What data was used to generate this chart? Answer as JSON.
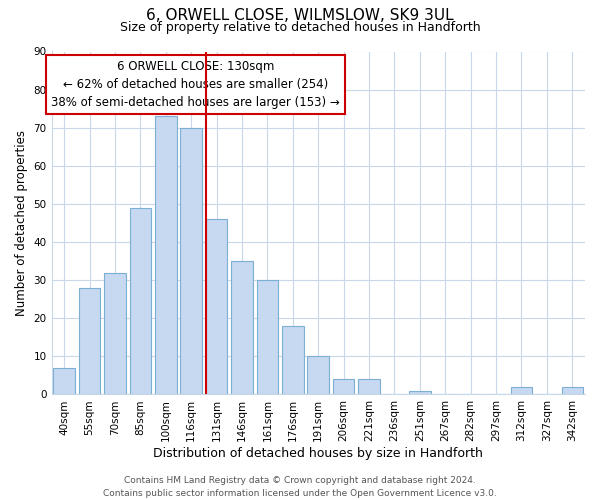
{
  "title": "6, ORWELL CLOSE, WILMSLOW, SK9 3UL",
  "subtitle": "Size of property relative to detached houses in Handforth",
  "xlabel": "Distribution of detached houses by size in Handforth",
  "ylabel": "Number of detached properties",
  "bar_labels": [
    "40sqm",
    "55sqm",
    "70sqm",
    "85sqm",
    "100sqm",
    "116sqm",
    "131sqm",
    "146sqm",
    "161sqm",
    "176sqm",
    "191sqm",
    "206sqm",
    "221sqm",
    "236sqm",
    "251sqm",
    "267sqm",
    "282sqm",
    "297sqm",
    "312sqm",
    "327sqm",
    "342sqm"
  ],
  "bar_values": [
    7,
    28,
    32,
    49,
    73,
    70,
    46,
    35,
    30,
    18,
    10,
    4,
    4,
    0,
    1,
    0,
    0,
    0,
    2,
    0,
    2
  ],
  "bar_color": "#c6d9f0",
  "bar_edge_color": "#7bafd4",
  "vline_index": 6,
  "vline_color": "#cc0000",
  "ylim": [
    0,
    90
  ],
  "yticks": [
    0,
    10,
    20,
    30,
    40,
    50,
    60,
    70,
    80,
    90
  ],
  "annotation_title": "6 ORWELL CLOSE: 130sqm",
  "annotation_line1": "← 62% of detached houses are smaller (254)",
  "annotation_line2": "38% of semi-detached houses are larger (153) →",
  "annotation_box_color": "#ffffff",
  "annotation_box_edge_color": "#cc0000",
  "footer_line1": "Contains HM Land Registry data © Crown copyright and database right 2024.",
  "footer_line2": "Contains public sector information licensed under the Open Government Licence v3.0.",
  "bg_color": "#ffffff",
  "grid_color": "#c8d8e8",
  "title_fontsize": 11,
  "subtitle_fontsize": 9,
  "ylabel_fontsize": 8.5,
  "xlabel_fontsize": 9,
  "tick_fontsize": 7.5,
  "footer_fontsize": 6.5,
  "annot_fontsize": 8.5
}
